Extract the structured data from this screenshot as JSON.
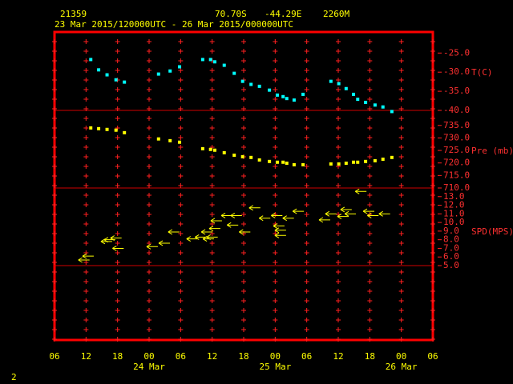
{
  "header": {
    "station": "21359",
    "lat": "70.70S",
    "lon": "-44.29E",
    "elevation": "2260M",
    "period": "23 Mar 2015/120000UTC - 26 Mar 2015/000000UTC"
  },
  "footer": "2",
  "x_axis": {
    "xlim": [
      0,
      72
    ],
    "xticks": [
      {
        "value": 0,
        "label": "06"
      },
      {
        "value": 6,
        "label": "12"
      },
      {
        "value": 12,
        "label": "18"
      },
      {
        "value": 18,
        "label": "00"
      },
      {
        "value": 24,
        "label": "06"
      },
      {
        "value": 30,
        "label": "12"
      },
      {
        "value": 36,
        "label": "18"
      },
      {
        "value": 42,
        "label": "00"
      },
      {
        "value": 48,
        "label": "06"
      },
      {
        "value": 54,
        "label": "12"
      },
      {
        "value": 60,
        "label": "18"
      },
      {
        "value": 66,
        "label": "00"
      },
      {
        "value": 72,
        "label": "06"
      }
    ],
    "day_labels": [
      {
        "value": 18,
        "label": "24 Mar"
      },
      {
        "value": 42,
        "label": "25 Mar"
      },
      {
        "value": 66,
        "label": "26 Mar"
      }
    ]
  },
  "chart_data": [
    {
      "type": "scatter",
      "ylabel": "T(C)",
      "color": "#00ffff",
      "x": [
        6.9,
        8.4,
        10,
        11.7,
        13.3,
        19.8,
        22,
        23.8,
        28.2,
        29.7,
        30.5,
        32.3,
        34.2,
        35.8,
        37.4,
        39,
        40.9,
        42.4,
        43.5,
        44.2,
        45.6,
        47.3,
        52.6,
        54.1,
        55.5,
        56.9,
        57.7,
        59.2,
        61,
        62.5,
        64.2
      ],
      "values": [
        -26.7,
        -29.4,
        -30.7,
        -32.0,
        -32.6,
        -30.5,
        -29.7,
        -28.6,
        -26.7,
        -26.7,
        -27.3,
        -28.2,
        -30.3,
        -32.4,
        -33.2,
        -33.7,
        -34.7,
        -36.0,
        -36.4,
        -36.9,
        -37.3,
        -35.8,
        -32.4,
        -33.0,
        -34.3,
        -35.8,
        -37.1,
        -37.9,
        -38.6,
        -39.1,
        -40.3
      ],
      "ylim": [
        -40,
        -19.5
      ],
      "yticks": [
        {
          "value": -25,
          "label": "-25.0"
        },
        {
          "value": -30,
          "label": "-30.0"
        },
        {
          "value": -35,
          "label": "-35.0"
        },
        {
          "value": -40,
          "label": "-40.0"
        }
      ]
    },
    {
      "type": "scatter",
      "ylabel": "Pre (mb)",
      "color": "#ffff00",
      "x": [
        6.9,
        8.4,
        10,
        11.7,
        13.3,
        19.8,
        22,
        23.8,
        28.2,
        29.7,
        30.5,
        32.3,
        34.2,
        35.8,
        37.4,
        39,
        40.9,
        42.4,
        43.5,
        44.2,
        45.6,
        47.3,
        52.6,
        54.1,
        55.5,
        56.9,
        57.7,
        59.2,
        61,
        62.5,
        64.2
      ],
      "values": [
        734.0,
        733.7,
        733.4,
        733.1,
        732.1,
        729.6,
        728.9,
        728.3,
        725.7,
        725.4,
        725.1,
        724.1,
        723.1,
        722.5,
        722.2,
        721.2,
        720.6,
        720.3,
        720.3,
        719.9,
        719.3,
        719.3,
        719.6,
        719.6,
        719.9,
        720.3,
        720.3,
        720.6,
        720.9,
        721.5,
        722.2
      ],
      "ylim": [
        710,
        741
      ],
      "yticks": [
        {
          "value": 735,
          "label": "735.0"
        },
        {
          "value": 730,
          "label": "730.0"
        },
        {
          "value": 725,
          "label": "725.0"
        },
        {
          "value": 720,
          "label": "720.0"
        },
        {
          "value": 715,
          "label": "715.0"
        },
        {
          "value": 710,
          "label": "710.0"
        }
      ]
    },
    {
      "type": "arrow",
      "ylabel": "SPD(MPS)",
      "color": "#ffff00",
      "x": [
        5.6,
        6.4,
        9.9,
        10.5,
        11.7,
        12.1,
        18.6,
        20.9,
        22.7,
        26.2,
        27.8,
        29.0,
        29.3,
        30.0,
        30.5,
        30.8,
        32.8,
        33.9,
        34.6,
        36.2,
        38.1,
        40.0,
        42.3,
        42.7,
        43.0,
        43.0,
        44.5,
        46.4,
        51.4,
        52.6,
        54.9,
        55.5,
        56.3,
        58.3,
        59.8,
        60.6,
        62.8
      ],
      "values": [
        5.65,
        6.1,
        7.8,
        8.0,
        8.2,
        7.0,
        7.2,
        7.6,
        8.9,
        8.1,
        8.3,
        8.9,
        8.1,
        8.3,
        9.3,
        10.2,
        10.8,
        9.7,
        10.8,
        8.9,
        11.7,
        10.5,
        10.8,
        9.6,
        9.1,
        8.5,
        10.5,
        11.3,
        10.3,
        11.0,
        10.7,
        11.5,
        11.0,
        13.6,
        11.3,
        10.8,
        11.0
      ],
      "ylim": [
        5,
        14
      ],
      "yticks": [
        {
          "value": 13,
          "label": "13.0"
        },
        {
          "value": 12,
          "label": "12.0"
        },
        {
          "value": 11,
          "label": "11.0"
        },
        {
          "value": 10,
          "label": "10.0"
        },
        {
          "value": 9,
          "label": "9.0"
        },
        {
          "value": 8,
          "label": "8.0"
        },
        {
          "value": 7,
          "label": "7.0"
        },
        {
          "value": 6,
          "label": "6.0"
        },
        {
          "value": 5,
          "label": "5.0"
        }
      ]
    }
  ]
}
